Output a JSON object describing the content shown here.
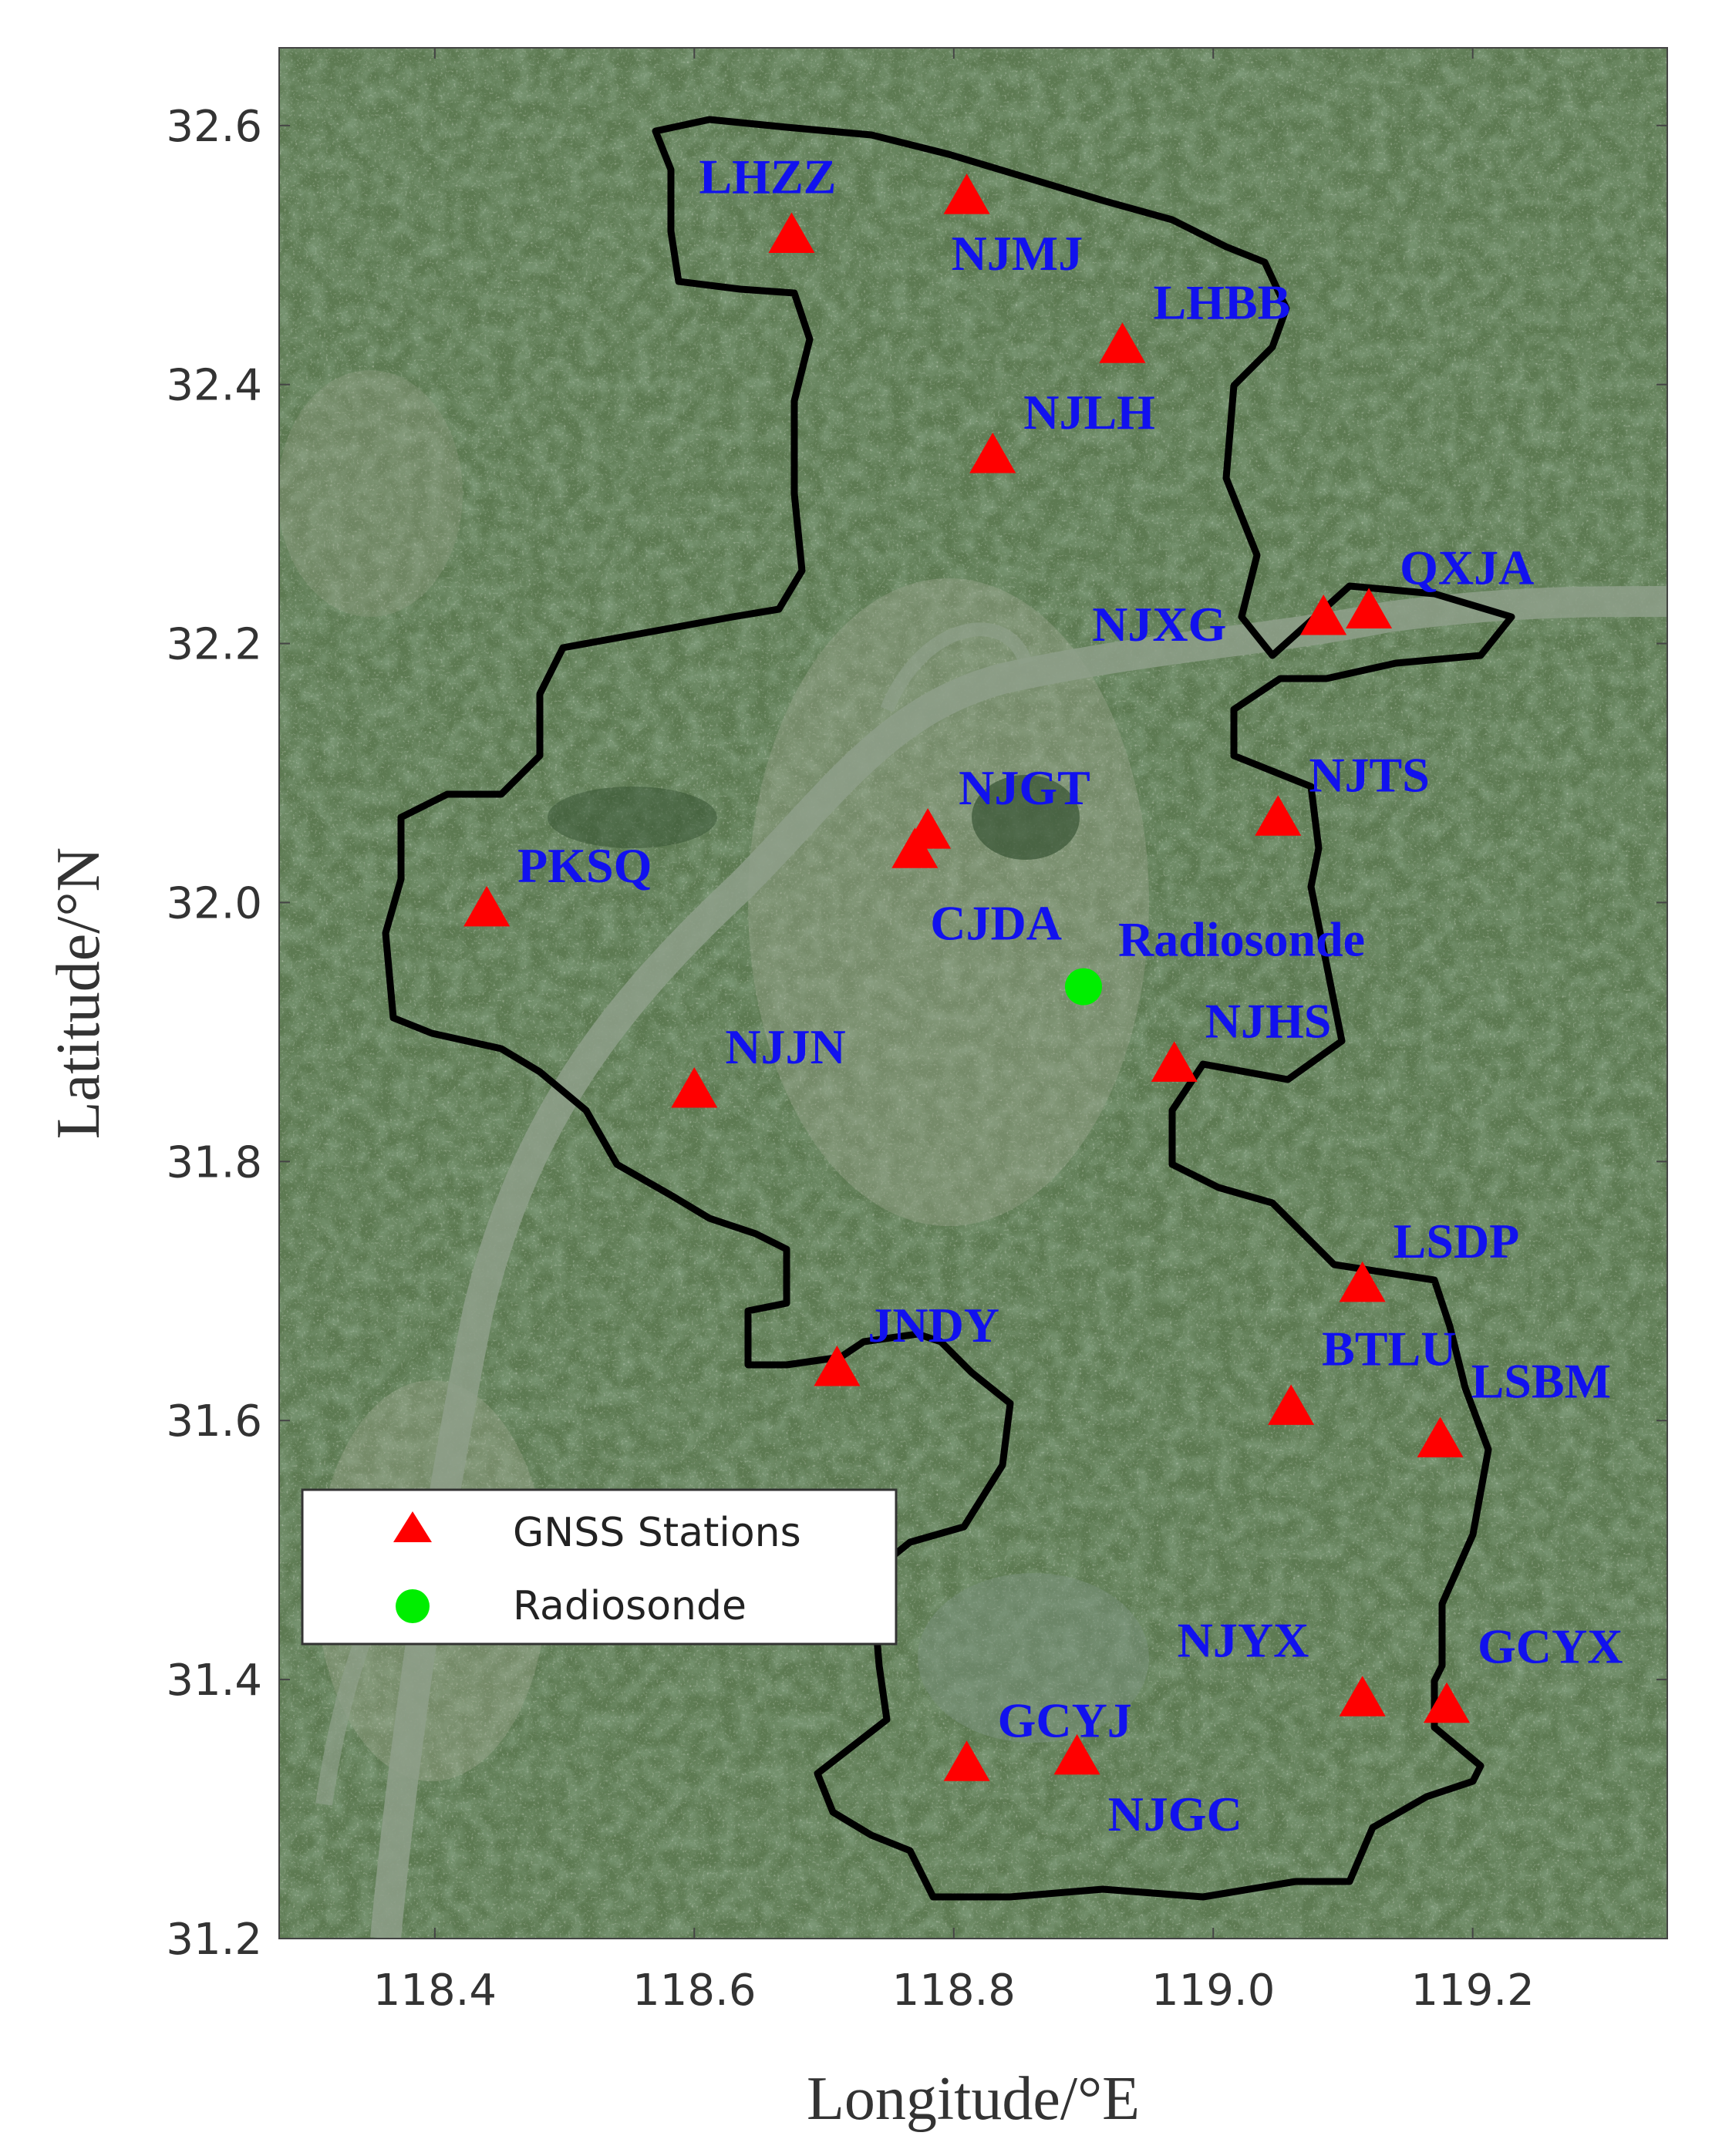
{
  "map": {
    "xlabel": "Longitude/°E",
    "ylabel": "Latitude/°N",
    "xlim": [
      118.28,
      119.35
    ],
    "ylim": [
      31.2,
      32.66
    ],
    "xticks": [
      "118.4",
      "118.6",
      "118.8",
      "119.0",
      "119.2"
    ],
    "yticks": [
      "31.2",
      "31.4",
      "31.6",
      "31.8",
      "32.0",
      "32.2",
      "32.4",
      "32.6"
    ],
    "colors": {
      "station": "#ff0000",
      "radiosonde": "#00ee00",
      "label": "#1111ee",
      "boundary": "#000000"
    }
  },
  "legend": {
    "placement": "lower-left",
    "items": [
      {
        "label": "GNSS Stations",
        "symbol": "triangle"
      },
      {
        "label": "Radiosonde",
        "symbol": "circle"
      }
    ]
  },
  "stations": [
    {
      "name": "LHZZ",
      "lon": 118.675,
      "lat": 32.515
    },
    {
      "name": "NJMJ",
      "lon": 118.81,
      "lat": 32.545
    },
    {
      "name": "LHBB",
      "lon": 118.93,
      "lat": 32.43
    },
    {
      "name": "NJLH",
      "lon": 118.83,
      "lat": 32.345
    },
    {
      "name": "NJXG",
      "lon": 119.085,
      "lat": 32.22
    },
    {
      "name": "QXJA",
      "lon": 119.12,
      "lat": 32.225
    },
    {
      "name": "NJGT",
      "lon": 118.78,
      "lat": 32.055
    },
    {
      "name": "CJDA",
      "lon": 118.77,
      "lat": 32.04
    },
    {
      "name": "NJTS",
      "lon": 119.05,
      "lat": 32.065
    },
    {
      "name": "PKSQ",
      "lon": 118.44,
      "lat": 31.995
    },
    {
      "name": "NJHS",
      "lon": 118.97,
      "lat": 31.875
    },
    {
      "name": "NJJN",
      "lon": 118.6,
      "lat": 31.855
    },
    {
      "name": "LSDP",
      "lon": 119.115,
      "lat": 31.705
    },
    {
      "name": "JNDY",
      "lon": 118.71,
      "lat": 31.64
    },
    {
      "name": "BTLU",
      "lon": 119.06,
      "lat": 31.61
    },
    {
      "name": "LSBM",
      "lon": 119.175,
      "lat": 31.585
    },
    {
      "name": "NJYX",
      "lon": 119.115,
      "lat": 31.385
    },
    {
      "name": "GCYX",
      "lon": 119.18,
      "lat": 31.38
    },
    {
      "name": "GCYJ",
      "lon": 118.81,
      "lat": 31.335
    },
    {
      "name": "NJGC",
      "lon": 118.895,
      "lat": 31.34
    }
  ],
  "radiosonde": {
    "name": "Radiosonde",
    "lon": 118.9,
    "lat": 31.935
  }
}
